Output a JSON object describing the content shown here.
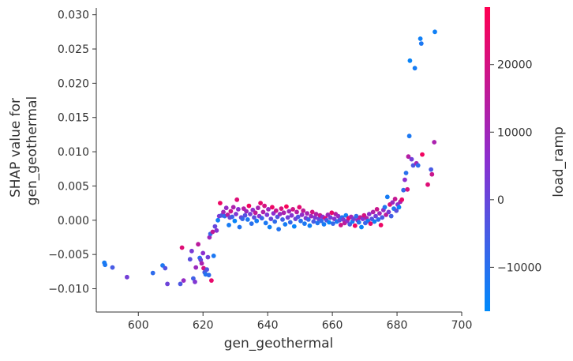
{
  "chart_data": {
    "type": "scatter",
    "title": "",
    "xlabel": "gen_geothermal",
    "ylabel_lines": [
      "SHAP value for",
      "gen_geothermal"
    ],
    "xlim": [
      587,
      700
    ],
    "ylim": [
      -0.0134,
      0.031
    ],
    "xticks": [
      {
        "value": 600,
        "label": "600"
      },
      {
        "value": 620,
        "label": "620"
      },
      {
        "value": 640,
        "label": "640"
      },
      {
        "value": 660,
        "label": "660"
      },
      {
        "value": 680,
        "label": "680"
      },
      {
        "value": 700,
        "label": "700"
      }
    ],
    "yticks": [
      {
        "value": -0.01,
        "label": "−0.010"
      },
      {
        "value": -0.005,
        "label": "−0.005"
      },
      {
        "value": 0.0,
        "label": "0.000"
      },
      {
        "value": 0.005,
        "label": "0.005"
      },
      {
        "value": 0.01,
        "label": "0.010"
      },
      {
        "value": 0.015,
        "label": "0.015"
      },
      {
        "value": 0.02,
        "label": "0.020"
      },
      {
        "value": 0.025,
        "label": "0.025"
      },
      {
        "value": 0.03,
        "label": "0.030"
      }
    ],
    "colorbar": {
      "label": "load_ramp",
      "range": [
        -16500,
        28500
      ],
      "ticks": [
        {
          "value": 20000,
          "label": "20000"
        },
        {
          "value": 10000,
          "label": "10000"
        },
        {
          "value": 0,
          "label": "0"
        },
        {
          "value": -10000,
          "label": "−10000"
        }
      ],
      "low_color": "#008afb",
      "mid_color": "#8c2fcf",
      "high_color": "#ff0052"
    },
    "grid": false,
    "legend": "none",
    "points": [
      [
        589.5,
        -0.0062,
        -13000
      ],
      [
        589.7,
        -0.0065,
        -12000
      ],
      [
        592.0,
        -0.0069,
        -5000
      ],
      [
        596.5,
        -0.0083,
        2000
      ],
      [
        604.5,
        -0.0077,
        -9000
      ],
      [
        607.5,
        -0.0066,
        -12000
      ],
      [
        608.3,
        -0.007,
        -3000
      ],
      [
        609.0,
        -0.0093,
        1000
      ],
      [
        613.0,
        -0.0093,
        -4000
      ],
      [
        613.5,
        -0.004,
        22000
      ],
      [
        614.0,
        -0.0088,
        8000
      ],
      [
        616.0,
        -0.0057,
        -2000
      ],
      [
        616.5,
        -0.0045,
        3000
      ],
      [
        617.0,
        -0.0085,
        -6000
      ],
      [
        617.5,
        -0.009,
        4000
      ],
      [
        617.8,
        -0.0069,
        9000
      ],
      [
        618.5,
        -0.0035,
        15000
      ],
      [
        619.0,
        -0.0055,
        -10000
      ],
      [
        619.3,
        -0.0058,
        0
      ],
      [
        619.6,
        -0.0063,
        12000
      ],
      [
        620.0,
        -0.0048,
        6000
      ],
      [
        620.2,
        -0.007,
        20000
      ],
      [
        620.5,
        -0.0076,
        -5000
      ],
      [
        620.8,
        -0.0079,
        -11000
      ],
      [
        621.2,
        -0.0072,
        -3000
      ],
      [
        621.5,
        -0.0054,
        2000
      ],
      [
        621.8,
        -0.008,
        -9000
      ],
      [
        622.0,
        -0.0025,
        10000
      ],
      [
        622.3,
        -0.002,
        -7000
      ],
      [
        622.6,
        -0.0088,
        24000
      ],
      [
        623.0,
        -0.0017,
        16000
      ],
      [
        623.3,
        -0.0052,
        -12000
      ],
      [
        623.7,
        -0.0009,
        0
      ],
      [
        624.2,
        -0.0015,
        5000
      ],
      [
        624.6,
        0.0,
        -14000
      ],
      [
        625.0,
        0.0006,
        3000
      ],
      [
        625.3,
        0.0025,
        25000
      ],
      [
        625.8,
        0.0007,
        -4000
      ],
      [
        626.3,
        0.0012,
        10000
      ],
      [
        626.7,
        0.0006,
        -9000
      ],
      [
        627.2,
        0.0018,
        8000
      ],
      [
        627.6,
        0.0008,
        15000
      ],
      [
        628.0,
        -0.0007,
        -13000
      ],
      [
        628.3,
        0.0004,
        2000
      ],
      [
        628.6,
        0.0013,
        18000
      ],
      [
        629.0,
        0.0005,
        -6000
      ],
      [
        629.4,
        0.0019,
        12000
      ],
      [
        629.8,
        -0.0001,
        -15000
      ],
      [
        630.2,
        0.0009,
        4000
      ],
      [
        630.5,
        0.003,
        22000
      ],
      [
        630.9,
        0.0016,
        6000
      ],
      [
        631.3,
        -0.001,
        -11000
      ],
      [
        631.8,
        0.0004,
        1000
      ],
      [
        632.2,
        0.0002,
        -8000
      ],
      [
        632.6,
        0.0017,
        14000
      ],
      [
        633.0,
        0.0007,
        -3000
      ],
      [
        633.4,
        0.0013,
        9000
      ],
      [
        633.8,
        0.0001,
        -12000
      ],
      [
        634.2,
        0.0021,
        26000
      ],
      [
        634.6,
        0.0009,
        3000
      ],
      [
        635.0,
        -0.0005,
        -10000
      ],
      [
        635.4,
        0.0015,
        7000
      ],
      [
        635.8,
        0.0004,
        -2000
      ],
      [
        636.2,
        0.0011,
        16000
      ],
      [
        636.6,
        -0.0001,
        -13000
      ],
      [
        637.0,
        0.0018,
        11000
      ],
      [
        637.4,
        0.0006,
        5000
      ],
      [
        637.8,
        0.0025,
        24000
      ],
      [
        638.2,
        0.0003,
        -7000
      ],
      [
        638.6,
        0.0012,
        13000
      ],
      [
        639.0,
        0.0021,
        20000
      ],
      [
        639.4,
        -0.0004,
        -12000
      ],
      [
        639.8,
        0.0008,
        4000
      ],
      [
        640.2,
        0.0016,
        9000
      ],
      [
        640.6,
        -0.001,
        -14000
      ],
      [
        641.0,
        0.0002,
        0
      ],
      [
        641.4,
        0.0019,
        25000
      ],
      [
        641.8,
        0.001,
        6000
      ],
      [
        642.2,
        -0.0002,
        -9000
      ],
      [
        642.6,
        0.0014,
        17000
      ],
      [
        643.0,
        0.0005,
        -3000
      ],
      [
        643.4,
        -0.0013,
        -11000
      ],
      [
        643.8,
        0.0009,
        8000
      ],
      [
        644.2,
        0.0017,
        21000
      ],
      [
        644.6,
        0.0001,
        -6000
      ],
      [
        645.0,
        0.0011,
        12000
      ],
      [
        645.4,
        -0.0006,
        -13000
      ],
      [
        645.8,
        0.002,
        27000
      ],
      [
        646.2,
        0.0004,
        2000
      ],
      [
        646.6,
        0.0013,
        10000
      ],
      [
        647.0,
        -0.0003,
        -8000
      ],
      [
        647.4,
        0.0007,
        5000
      ],
      [
        647.8,
        0.0016,
        19000
      ],
      [
        648.2,
        -0.0009,
        -15000
      ],
      [
        648.6,
        0.0002,
        1000
      ],
      [
        649.0,
        0.0012,
        14000
      ],
      [
        649.4,
        0.0005,
        -4000
      ],
      [
        649.8,
        0.0019,
        23000
      ],
      [
        650.2,
        -0.0001,
        -10000
      ],
      [
        650.6,
        0.0008,
        7000
      ],
      [
        651.0,
        0.0014,
        16000
      ],
      [
        651.4,
        -0.0005,
        -12000
      ],
      [
        651.8,
        0.0003,
        3000
      ],
      [
        652.2,
        0.001,
        11000
      ],
      [
        652.6,
        0.0001,
        -7000
      ],
      [
        653.0,
        -0.0008,
        -14000
      ],
      [
        653.4,
        0.0006,
        9000
      ],
      [
        653.8,
        0.0012,
        20000
      ],
      [
        654.2,
        -0.0002,
        -5000
      ],
      [
        654.6,
        0.0004,
        4000
      ],
      [
        655.0,
        0.0009,
        13000
      ],
      [
        655.4,
        -0.0004,
        -11000
      ],
      [
        655.8,
        0.0002,
        0
      ],
      [
        656.2,
        0.0007,
        17000
      ],
      [
        656.6,
        -0.0001,
        -9000
      ],
      [
        657.0,
        0.0005,
        6000
      ],
      [
        657.4,
        -0.0006,
        -13000
      ],
      [
        657.8,
        0.0003,
        21000
      ],
      [
        658.2,
        0.0,
        -3000
      ],
      [
        658.6,
        0.0008,
        10000
      ],
      [
        659.0,
        -0.0003,
        -15000
      ],
      [
        659.4,
        0.0004,
        2000
      ],
      [
        659.8,
        0.0011,
        24000
      ],
      [
        660.2,
        -0.0005,
        -8000
      ],
      [
        660.6,
        0.0002,
        5000
      ],
      [
        661.0,
        0.0009,
        14000
      ],
      [
        661.4,
        -0.0002,
        -12000
      ],
      [
        661.8,
        0.0006,
        8000
      ],
      [
        662.2,
        0.0,
        -4000
      ],
      [
        662.6,
        -0.0007,
        19000
      ],
      [
        663.0,
        0.0004,
        -10000
      ],
      [
        663.4,
        0.0001,
        3000
      ],
      [
        663.8,
        -0.0004,
        15000
      ],
      [
        664.2,
        0.0007,
        -14000
      ],
      [
        664.6,
        -0.0001,
        7000
      ],
      [
        665.0,
        0.0003,
        22000
      ],
      [
        665.4,
        -0.0006,
        -6000
      ],
      [
        665.8,
        0.0005,
        11000
      ],
      [
        666.2,
        -0.0002,
        -13000
      ],
      [
        666.6,
        0.0002,
        1000
      ],
      [
        667.0,
        -0.0008,
        26000
      ],
      [
        667.4,
        0.0006,
        -9000
      ],
      [
        667.8,
        0.0,
        9000
      ],
      [
        668.2,
        -0.0003,
        -11000
      ],
      [
        668.6,
        0.0004,
        16000
      ],
      [
        669.0,
        -0.001,
        -15000
      ],
      [
        669.4,
        0.0002,
        4000
      ],
      [
        669.8,
        0.0007,
        20000
      ],
      [
        670.2,
        -0.0004,
        -7000
      ],
      [
        670.6,
        0.0003,
        12000
      ],
      [
        671.0,
        -0.0001,
        -12000
      ],
      [
        671.4,
        0.0009,
        6000
      ],
      [
        671.8,
        -0.0005,
        23000
      ],
      [
        672.2,
        0.0002,
        -3000
      ],
      [
        672.6,
        0.0012,
        13000
      ],
      [
        673.0,
        -0.0002,
        -14000
      ],
      [
        673.4,
        0.0006,
        2000
      ],
      [
        673.8,
        0.0016,
        18000
      ],
      [
        674.2,
        0.0001,
        -9000
      ],
      [
        674.6,
        0.001,
        10000
      ],
      [
        675.0,
        -0.0007,
        25000
      ],
      [
        675.4,
        0.0004,
        -5000
      ],
      [
        675.8,
        0.0015,
        8000
      ],
      [
        676.2,
        0.0019,
        -11000
      ],
      [
        676.6,
        0.0008,
        15000
      ],
      [
        677.0,
        0.0034,
        -13000
      ],
      [
        677.4,
        0.0012,
        3000
      ],
      [
        677.8,
        0.0023,
        21000
      ],
      [
        678.2,
        0.0006,
        -6000
      ],
      [
        678.6,
        0.0026,
        9000
      ],
      [
        679.0,
        0.0017,
        -12000
      ],
      [
        679.4,
        0.0031,
        17000
      ],
      [
        679.8,
        0.0014,
        -2000
      ],
      [
        680.2,
        0.0023,
        5000
      ],
      [
        680.6,
        0.0019,
        -14000
      ],
      [
        681.0,
        0.0027,
        12000
      ],
      [
        681.5,
        0.003,
        24000
      ],
      [
        682.0,
        0.0044,
        -8000
      ],
      [
        682.4,
        0.0059,
        6000
      ],
      [
        682.8,
        0.0069,
        -10000
      ],
      [
        683.2,
        0.0045,
        20000
      ],
      [
        683.5,
        0.0093,
        14000
      ],
      [
        683.8,
        0.0123,
        -12000
      ],
      [
        684.0,
        0.0233,
        -15000
      ],
      [
        684.5,
        0.0089,
        2000
      ],
      [
        685.0,
        0.008,
        -4000
      ],
      [
        685.5,
        0.0222,
        -13000
      ],
      [
        686.0,
        0.0083,
        10000
      ],
      [
        686.5,
        0.008,
        -9000
      ],
      [
        687.2,
        0.0265,
        -14000
      ],
      [
        687.5,
        0.0258,
        -12000
      ],
      [
        687.8,
        0.0096,
        26000
      ],
      [
        689.5,
        0.0052,
        22000
      ],
      [
        690.5,
        0.0074,
        -5000
      ],
      [
        690.8,
        0.0067,
        18000
      ],
      [
        691.5,
        0.0114,
        12000
      ],
      [
        691.7,
        0.0275,
        -14000
      ]
    ]
  }
}
